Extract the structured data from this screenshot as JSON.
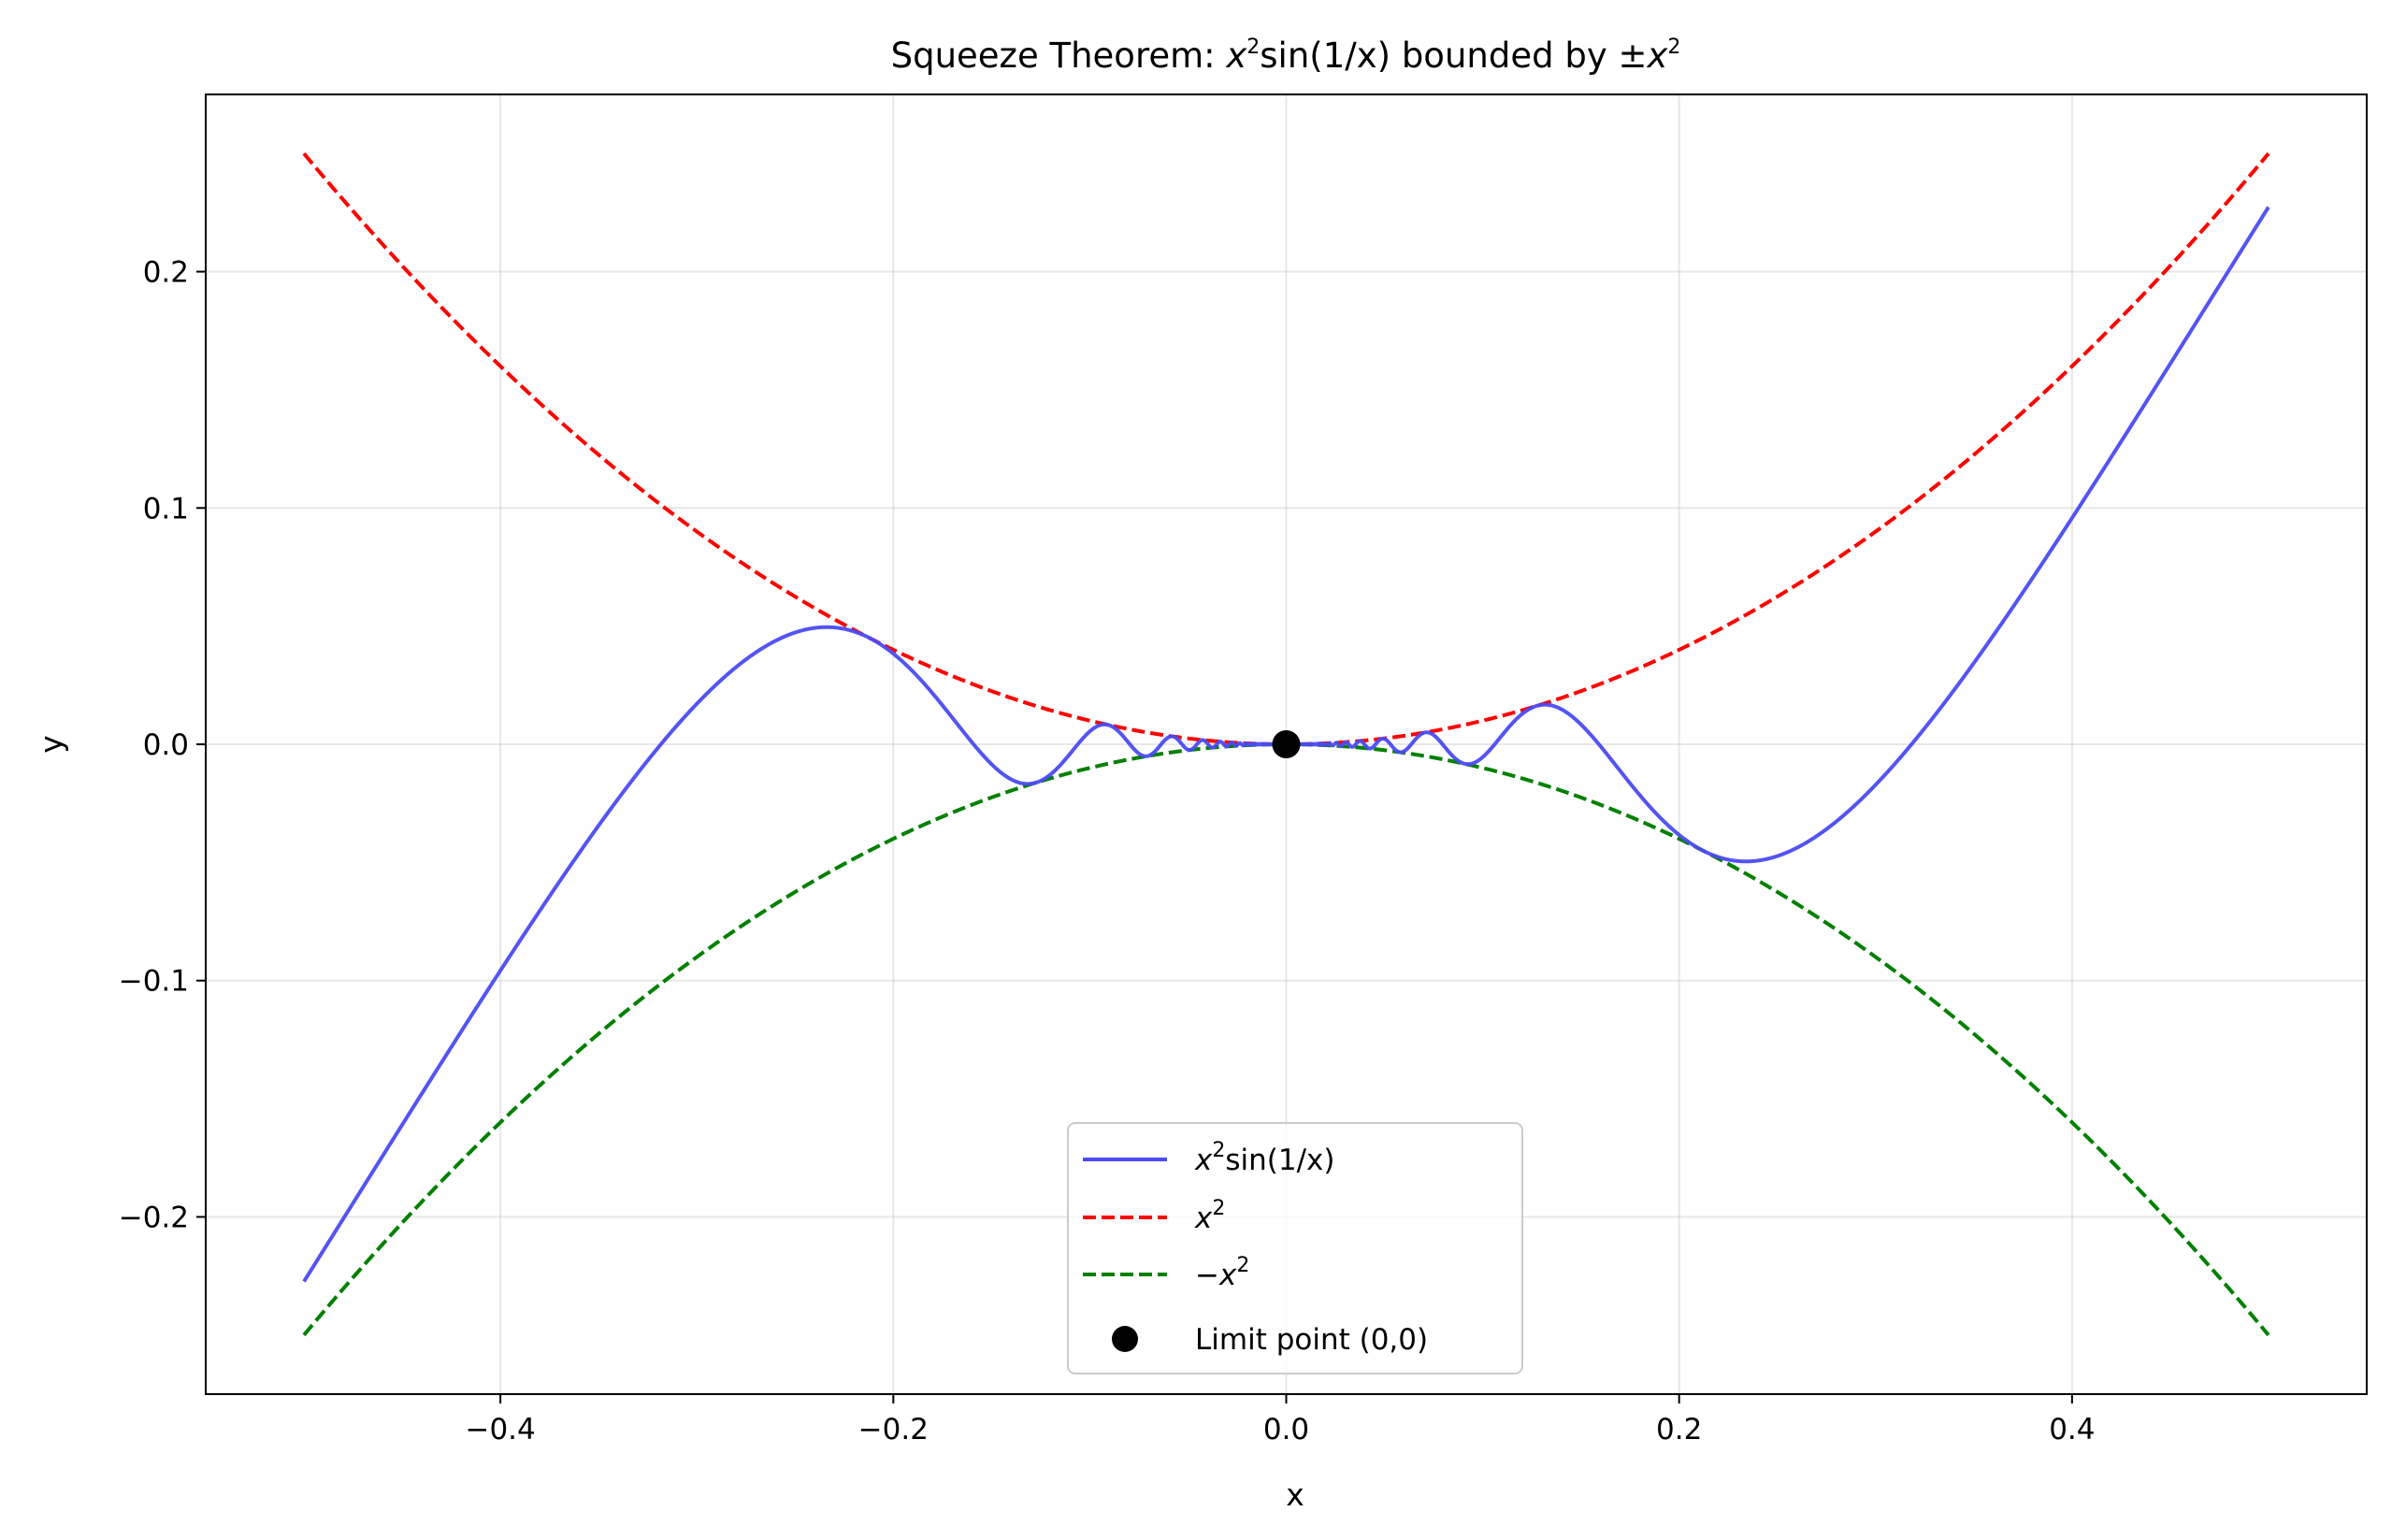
{
  "chart_data": {
    "type": "line",
    "title_text": "Squeeze Theorem: ",
    "title_expr_base": "x",
    "title_expr_sup": "2",
    "title_expr_rest": "sin(1/x) bounded by ±",
    "title_bound_base": "x",
    "title_bound_sup": "2",
    "xlabel": "x",
    "ylabel": "y",
    "xlim": [
      -0.55,
      0.55
    ],
    "ylim": [
      -0.275,
      0.275
    ],
    "xticks": [
      -0.4,
      -0.2,
      0.0,
      0.2,
      0.4
    ],
    "xtick_labels": [
      "−0.4",
      "−0.2",
      "0.0",
      "0.2",
      "0.4"
    ],
    "yticks": [
      -0.2,
      -0.1,
      0.0,
      0.1,
      0.2
    ],
    "ytick_labels": [
      "−0.2",
      "−0.1",
      "0.0",
      "0.1",
      "0.2"
    ],
    "grid": true,
    "legend_position": "lower-center",
    "x_domain": [
      -0.5,
      0.5
    ],
    "series": [
      {
        "name": "x²sin(1/x)",
        "function": "x^2*sin(1/x)",
        "color": "#4b4bf2",
        "style": "solid"
      },
      {
        "name": "x²",
        "function": "x^2",
        "color": "#ff0000",
        "style": "dashed"
      },
      {
        "name": "−x²",
        "function": "-x^2",
        "color": "#008000",
        "style": "dashed"
      },
      {
        "name": "Limit point (0,0)",
        "type": "scatter",
        "x": [
          0.0
        ],
        "y": [
          0.0
        ],
        "color": "#000000"
      }
    ],
    "legend": [
      {
        "base": "x",
        "sup": "2",
        "rest": "sin(1/x)",
        "color": "#4b4bf2",
        "style": "solid"
      },
      {
        "base": "x",
        "sup": "2",
        "rest": "",
        "color": "#ff0000",
        "style": "dashed"
      },
      {
        "base": "−x",
        "sup": "2",
        "rest": "",
        "color": "#008000",
        "style": "dashed"
      },
      {
        "base": "Limit point (0,0)",
        "sup": "",
        "rest": "",
        "color": "#000000",
        "style": "marker"
      }
    ]
  }
}
